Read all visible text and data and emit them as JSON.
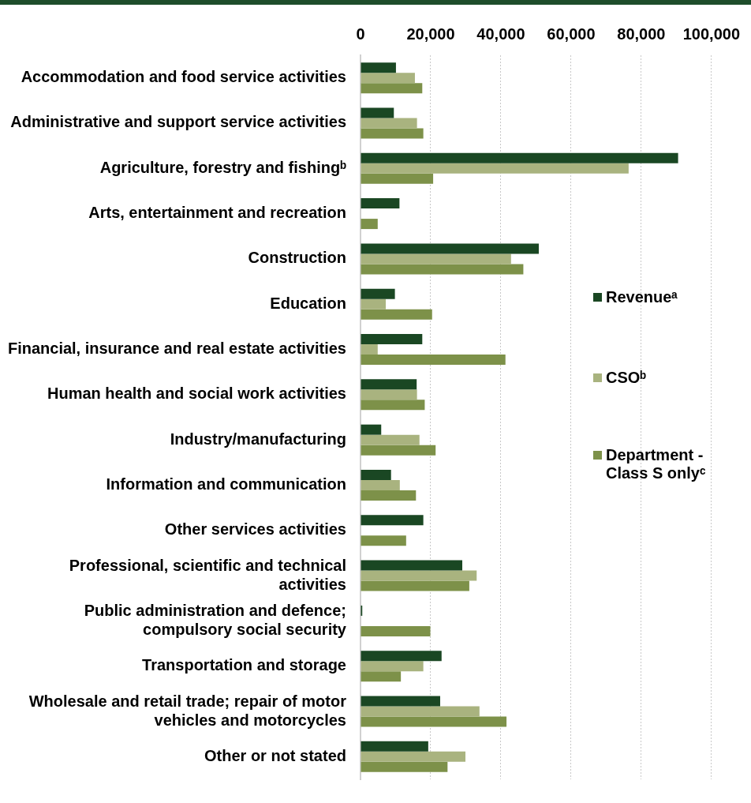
{
  "chart_data": {
    "type": "bar",
    "orientation": "horizontal",
    "categories": [
      "Accommodation and food service activities",
      "Administrative and support service activities",
      "Agriculture, forestry and fishingᵇ",
      "Arts, entertainment and recreation",
      "Construction",
      "Education",
      "Financial, insurance and real estate activities",
      "Human health and social work activities",
      "Industry/manufacturing",
      "Information and communication",
      "Other services activities",
      "Professional, scientific and technical activities",
      "Public administration and defence; compulsory social security",
      "Transportation and storage",
      "Wholesale and retail trade; repair of motor vehicles and motorcycles",
      "Other or not stated"
    ],
    "series": [
      {
        "name": "Revenueᵃ",
        "color": "#1a4723",
        "values": [
          10100,
          9500,
          90500,
          11100,
          50800,
          9800,
          17600,
          16000,
          5900,
          8700,
          17900,
          29000,
          500,
          23100,
          22700,
          19300
        ]
      },
      {
        "name": "CSOᵇ",
        "color": "#a9b37f",
        "values": [
          15500,
          16100,
          76400,
          null,
          42900,
          7200,
          4900,
          16100,
          16800,
          11200,
          null,
          33100,
          null,
          17900,
          33900,
          29900
        ]
      },
      {
        "name": "Department - Class S onlyᶜ",
        "color": "#7d9149",
        "values": [
          17600,
          17900,
          20700,
          4900,
          46400,
          20400,
          41300,
          18300,
          21400,
          15800,
          13000,
          31000,
          19900,
          11500,
          41600,
          24800
        ]
      }
    ],
    "xlim": [
      0,
      100000
    ],
    "xticks": [
      0,
      {
        "value": 20000,
        "label": "20,000"
      },
      {
        "value": 40000,
        "label": "40,000"
      },
      {
        "value": 60000,
        "label": "60,000"
      },
      {
        "value": 80000,
        "label": "80,000"
      },
      {
        "value": 100000,
        "label": "100,000"
      }
    ],
    "grid": "x",
    "legend": "right"
  }
}
